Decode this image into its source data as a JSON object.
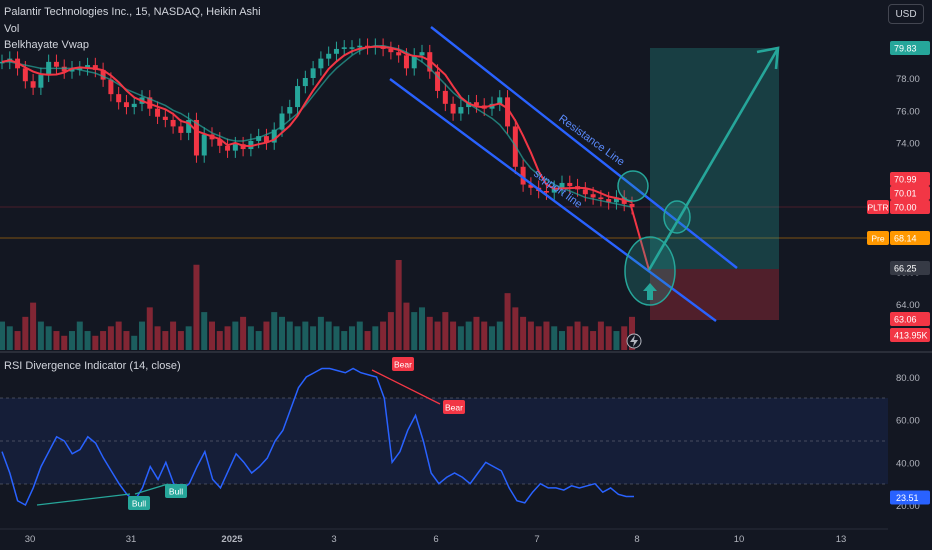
{
  "header": {
    "title": "Palantir Technologies Inc., 15, NASDAQ, Heikin Ashi",
    "indicator_vol": "Vol",
    "indicator_vwap": "Belkhayate Vwap",
    "currency": "USD"
  },
  "rsi_panel": {
    "title": "RSI Divergence Indicator (14, close)"
  },
  "chart_data": [
    {
      "type": "candlestick",
      "ticker": "PLTR",
      "price_axis_ticks": [
        64.0,
        66.0,
        68.0,
        70.0,
        72.0,
        74.0,
        76.0,
        78.0
      ],
      "x_tick_labels": [
        "30",
        "31",
        "2025",
        "3",
        "6",
        "7",
        "8",
        "10",
        "13"
      ],
      "price_badges": [
        {
          "label": "",
          "value": "79.83",
          "color": "#26a69a"
        },
        {
          "label": "",
          "value": "70.99",
          "color": "#f23645"
        },
        {
          "label": "",
          "value": "70.01",
          "color": "#f23645"
        },
        {
          "label": "PLTR",
          "value": "70.00",
          "color": "#f23645"
        },
        {
          "label": "Pre",
          "value": "68.14",
          "color": "#ff9800"
        },
        {
          "label": "",
          "value": "66.25",
          "color": "#363a45"
        },
        {
          "label": "",
          "value": "63.06",
          "color": "#f23645"
        },
        {
          "label": "",
          "value": "413.95K",
          "color": "#f23645"
        }
      ],
      "close_series": [
        79.0,
        79.2,
        78.6,
        77.8,
        77.4,
        78.2,
        79.0,
        78.7,
        78.4,
        78.6,
        78.6,
        78.8,
        78.5,
        77.9,
        77.0,
        76.5,
        76.2,
        76.4,
        76.8,
        76.1,
        75.6,
        75.4,
        75.0,
        74.6,
        75.4,
        73.2,
        74.5,
        74.2,
        73.8,
        73.5,
        73.9,
        73.6,
        74.1,
        74.4,
        74.0,
        74.8,
        75.8,
        76.2,
        77.5,
        78.0,
        78.6,
        79.2,
        79.5,
        79.8,
        79.9,
        79.9,
        80.0,
        79.9,
        80.0,
        79.8,
        79.6,
        79.4,
        78.6,
        79.4,
        79.6,
        78.4,
        77.2,
        76.4,
        75.8,
        76.2,
        76.5,
        76.3,
        76.1,
        76.4,
        76.8,
        75.0,
        72.5,
        71.4,
        71.2,
        71.0,
        70.9,
        71.2,
        71.5,
        71.3,
        71.1,
        70.8,
        70.6,
        70.5,
        70.3,
        70.6,
        70.2,
        70.0
      ],
      "vwap_series": [
        79.0,
        79.0,
        78.9,
        78.8,
        78.7,
        78.6,
        78.6,
        78.6,
        78.6,
        78.6,
        78.5,
        78.4,
        78.3,
        78.1,
        77.9,
        77.6,
        77.3,
        77.1,
        76.9,
        76.7,
        76.5,
        76.3,
        76.0,
        75.8,
        75.5,
        75.2,
        74.9,
        74.6,
        74.4,
        74.2,
        74.1,
        74.1,
        74.2,
        74.3,
        74.5,
        74.7,
        75.0,
        75.4,
        75.8,
        76.3,
        76.9,
        77.5,
        78.1,
        78.6,
        79.0,
        79.4,
        79.7,
        79.9,
        80.0,
        80.0,
        79.9,
        79.8,
        79.6,
        79.3,
        79.0,
        78.6,
        78.1,
        77.6,
        77.1,
        76.7,
        76.4,
        76.1,
        75.8,
        75.5,
        75.1,
        74.5,
        73.8,
        73.0,
        72.4,
        72.0,
        71.7,
        71.4,
        71.2,
        71.0,
        70.8,
        70.6,
        70.5,
        70.4,
        70.3,
        70.2,
        70.1,
        70.0
      ],
      "volume_series": [
        0.3,
        0.25,
        0.2,
        0.35,
        0.5,
        0.3,
        0.25,
        0.2,
        0.15,
        0.2,
        0.3,
        0.2,
        0.15,
        0.2,
        0.25,
        0.3,
        0.2,
        0.15,
        0.3,
        0.45,
        0.25,
        0.2,
        0.3,
        0.2,
        0.25,
        0.9,
        0.4,
        0.3,
        0.2,
        0.25,
        0.3,
        0.35,
        0.25,
        0.2,
        0.3,
        0.4,
        0.35,
        0.3,
        0.25,
        0.3,
        0.25,
        0.35,
        0.3,
        0.25,
        0.2,
        0.25,
        0.3,
        0.2,
        0.25,
        0.3,
        0.4,
        0.95,
        0.5,
        0.4,
        0.45,
        0.35,
        0.3,
        0.4,
        0.3,
        0.25,
        0.3,
        0.35,
        0.3,
        0.25,
        0.3,
        0.6,
        0.45,
        0.35,
        0.3,
        0.25,
        0.3,
        0.25,
        0.2,
        0.25,
        0.3,
        0.25,
        0.2,
        0.3,
        0.25,
        0.2,
        0.25,
        0.35
      ],
      "annotations": [
        {
          "text": "Resistance Line"
        },
        {
          "text": "support line"
        }
      ],
      "long_position": {
        "target": 79.83,
        "entry": 66.25,
        "stop": 63.06
      }
    },
    {
      "type": "line",
      "name": "RSI Divergence Indicator (14, close)",
      "y_axis_ticks": [
        20.0,
        40.0,
        60.0,
        80.0
      ],
      "band": [
        30,
        70
      ],
      "mid_line": 50,
      "last_value": "23.51",
      "values": [
        45,
        35,
        22,
        20,
        28,
        38,
        45,
        52,
        50,
        44,
        46,
        52,
        49,
        42,
        36,
        30,
        25,
        22,
        28,
        38,
        32,
        40,
        30,
        27,
        30,
        38,
        45,
        32,
        28,
        36,
        44,
        40,
        35,
        38,
        42,
        50,
        55,
        65,
        75,
        80,
        82,
        84,
        84,
        83,
        82,
        84,
        82,
        81,
        80,
        70,
        40,
        45,
        55,
        62,
        50,
        35,
        30,
        33,
        35,
        33,
        30,
        35,
        40,
        38,
        36,
        28,
        22,
        21,
        26,
        30,
        28,
        28,
        27,
        29,
        28,
        29,
        30,
        26,
        28,
        25,
        24,
        24
      ],
      "divergence_labels": [
        {
          "text": "Bull",
          "color": "#26a69a"
        },
        {
          "text": "Bull",
          "color": "#26a69a"
        },
        {
          "text": "Bear",
          "color": "#f23645"
        },
        {
          "text": "Bear",
          "color": "#f23645"
        }
      ]
    }
  ]
}
